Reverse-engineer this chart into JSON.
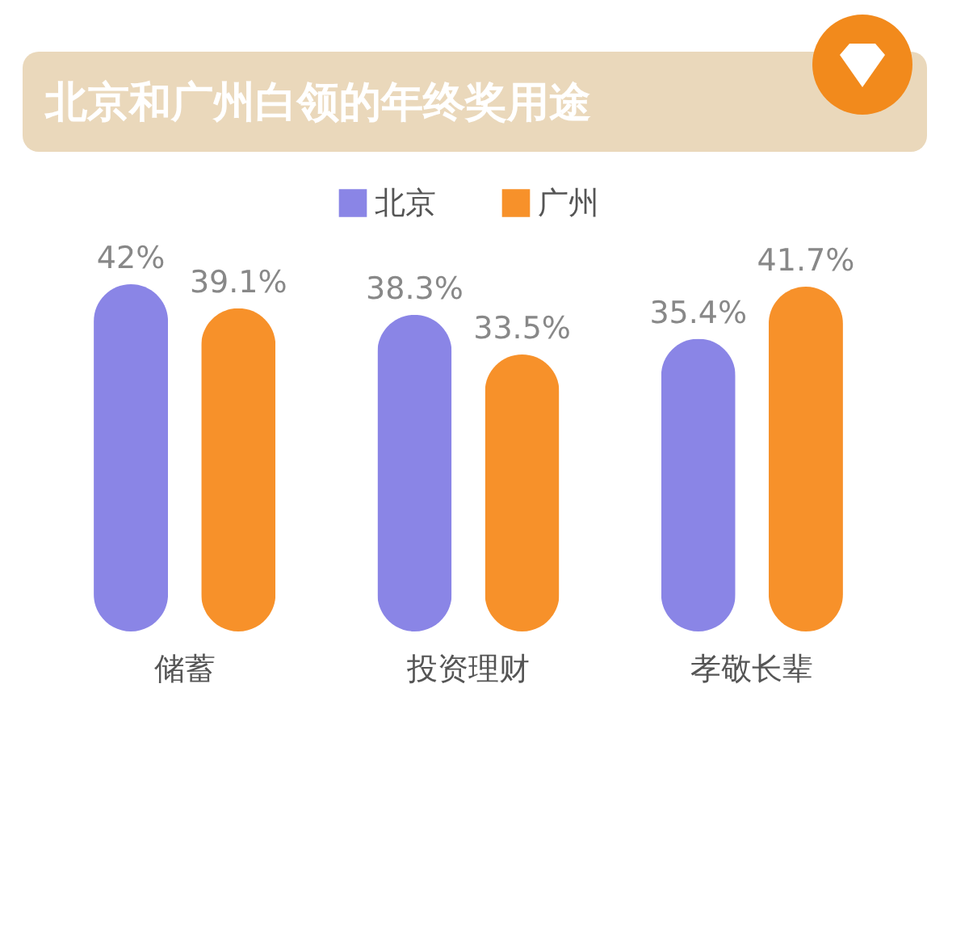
{
  "chart_data": {
    "type": "bar",
    "title": "北京和广州白领的年终奖用途",
    "categories": [
      "储蓄",
      "投资理财",
      "孝敬长辈"
    ],
    "series": [
      {
        "name": "北京",
        "color": "#8a85e6",
        "values": [
          42,
          38.3,
          35.4
        ],
        "value_labels": [
          "42%",
          "38.3%",
          "35.4%"
        ]
      },
      {
        "name": "广州",
        "color": "#f7912a",
        "values": [
          39.1,
          33.5,
          41.7
        ],
        "value_labels": [
          "39.1%",
          "33.5%",
          "41.7%"
        ]
      }
    ],
    "legend": "top"
  }
}
